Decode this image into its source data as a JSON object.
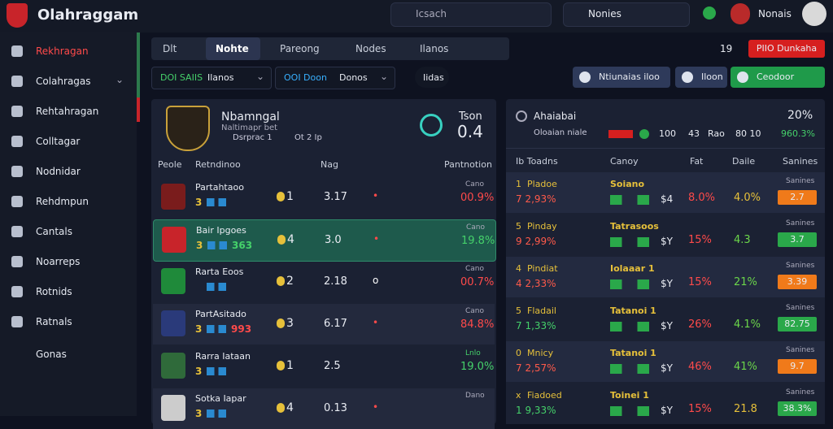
{
  "header": {
    "logo": "Olahraggam",
    "search": "Icsach",
    "search2": "Nonies",
    "user": "Nonais"
  },
  "sidebar": [
    "Rekhragan",
    "Colahragas",
    "Rehtahragan",
    "Colltagar",
    "Nodnidar",
    "Rehdmpun",
    "Cantals",
    "Noarreps",
    "Rotnids",
    "Ratnals",
    "Gonas"
  ],
  "tabs": [
    "Dlt",
    "Nohte",
    "Pareong",
    "Nodes",
    "Ilanos"
  ],
  "filters": [
    {
      "label": "DOI SAIIS",
      "value": "Ilanos"
    },
    {
      "label": "OOI Doon",
      "value": "Donos"
    }
  ],
  "pill": "Iidas",
  "topright": {
    "count": "19",
    "alert": "PIIO Dunkaha",
    "buttons": [
      "Ntiunaias iloo",
      "Iloon",
      "Ceodoor"
    ]
  },
  "match": {
    "name": "Nbamngal",
    "sub": "Naltimapr bet",
    "meta1": "Dsrprac 1",
    "meta2": "Ot 2 Ip",
    "score_label": "Tson",
    "score": "0.4",
    "columns": [
      "Peole",
      "Retndinoo",
      "Nag",
      "Pantnotion"
    ],
    "rows": [
      {
        "name": "Partahtaoo",
        "tag": "3",
        "extra": "",
        "rank": "1",
        "odds": "3.17",
        "mark": "•",
        "small": "Cano",
        "pct": "00.9%"
      },
      {
        "name": "Bair Ipgoes",
        "tag": "3",
        "extra": "363",
        "rank": "4",
        "odds": "3.0",
        "mark": "•",
        "small": "Cano",
        "pct": "19.8%"
      },
      {
        "name": "Rarta Eoos",
        "tag": "",
        "extra": "",
        "rank": "2",
        "odds": "2.18",
        "mark": "o",
        "small": "Cano",
        "pct": "00.7%"
      },
      {
        "name": "PartAsitado",
        "tag": "3",
        "extra": "993",
        "rank": "3",
        "odds": "6.17",
        "mark": "•",
        "small": "Cano",
        "pct": "84.8%"
      },
      {
        "name": "Rarra Iataan",
        "tag": "3",
        "extra": "",
        "rank": "1",
        "odds": "2.5",
        "mark": "",
        "small": "Lnlo",
        "pct": "19.0%"
      },
      {
        "name": "Sotka Iapar",
        "tag": "3",
        "extra": "",
        "rank": "4",
        "odds": "0.13",
        "mark": "•",
        "small": "Dano",
        "pct": ""
      }
    ]
  },
  "ranking": {
    "title": "Ahaiabai",
    "sub": "Oloaian niale",
    "pct": "20%",
    "stats": [
      "100",
      "43",
      "Rao",
      "80 10",
      "960.3%"
    ],
    "columns": [
      "Ib Toadns",
      "Canoy",
      "Fat",
      "Daile",
      "Sanines"
    ],
    "rows": [
      {
        "rank": "1",
        "name": "Pladoe",
        "sub": "7 2,93%",
        "team": "Soiano",
        "amt": "$4",
        "fat": "8.0%",
        "daile": "4.0%",
        "small": "Sanines",
        "badge": "2.7",
        "badge_color": "#f07a1a",
        "daile_color": "#e6c03a"
      },
      {
        "rank": "5",
        "name": "Pinday",
        "sub": "9 2,99%",
        "team": "Tatrasoos",
        "amt": "$Y",
        "fat": "15%",
        "daile": "4.3",
        "small": "Sanines",
        "badge": "3.7",
        "badge_color": "#2aa84a",
        "daile_color": "#6bd64a"
      },
      {
        "rank": "4",
        "name": "Pindiat",
        "sub": "4 2,33%",
        "team": "Iolaaar 1",
        "amt": "$Y",
        "fat": "15%",
        "daile": "21%",
        "small": "Sanines",
        "badge": "3.39",
        "badge_color": "#f07a1a",
        "daile_color": "#6bd64a"
      },
      {
        "rank": "5",
        "name": "Fladail",
        "sub": "7 1,33%",
        "team": "Tatanoi 1",
        "amt": "$Y",
        "fat": "26%",
        "daile": "4.1%",
        "small": "Sanines",
        "badge": "82.75",
        "badge_color": "#2aa84a",
        "daile_color": "#6bd64a"
      },
      {
        "rank": "0",
        "name": "Mnicy",
        "sub": "7 2,57%",
        "team": "Tatanoi 1",
        "amt": "$Y",
        "fat": "46%",
        "daile": "41%",
        "small": "Sanines",
        "badge": "9.7",
        "badge_color": "#f07a1a",
        "daile_color": "#6bd64a"
      },
      {
        "rank": "x",
        "name": "Fiadoed",
        "sub": "1 9,33%",
        "team": "Toinei 1",
        "amt": "$Y",
        "fat": "15%",
        "daile": "21.8",
        "small": "Sanines",
        "badge": "38.3%",
        "badge_color": "#2aa84a",
        "daile_color": "#e6c03a"
      }
    ]
  }
}
